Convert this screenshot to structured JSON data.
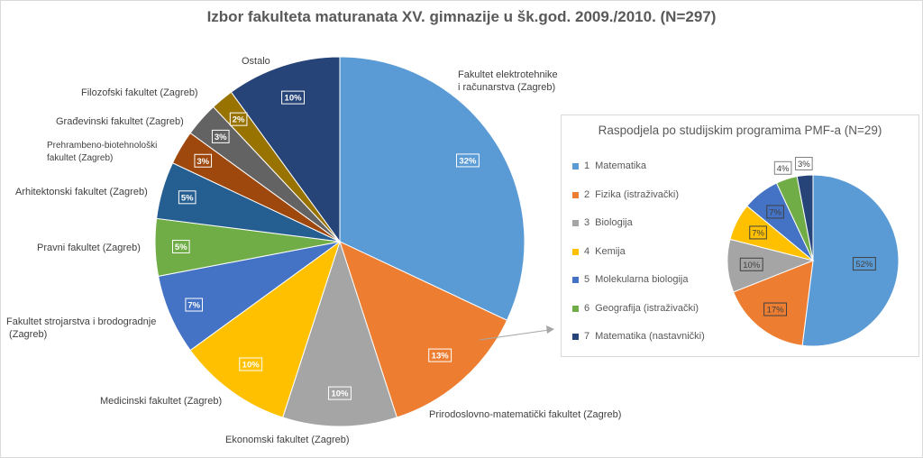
{
  "chart_data": [
    {
      "type": "pie",
      "title": "Izbor fakulteta maturanata XV. gimnazije u šk.god. 2009./2010. (N=297)",
      "slices": [
        {
          "label": "Fakultet elektrotehnike i računarstva (Zagreb)",
          "value": 32,
          "value_label": "32%",
          "color": "#5b9bd5"
        },
        {
          "label": "Prirodoslovno-matematički fakultet (Zagreb)",
          "value": 13,
          "value_label": "13%",
          "color": "#ed7d31"
        },
        {
          "label": "Ekonomski fakultet (Zagreb)",
          "value": 10,
          "value_label": "10%",
          "color": "#a5a5a5"
        },
        {
          "label": "Medicinski fakultet (Zagreb)",
          "value": 10,
          "value_label": "10%",
          "color": "#ffc000"
        },
        {
          "label": "Fakultet strojarstva i brodogradnje (Zagreb)",
          "value": 7,
          "value_label": "7%",
          "color": "#4472c4"
        },
        {
          "label": "Pravni fakultet (Zagreb)",
          "value": 5,
          "value_label": "5%",
          "color": "#70ad47"
        },
        {
          "label": "Arhitektonski fakultet (Zagreb)",
          "value": 5,
          "value_label": "5%",
          "color": "#255e91"
        },
        {
          "label": "Prehrambeno-biotehnološki fakultet (Zagreb)",
          "value": 3,
          "value_label": "3%",
          "color": "#9e480e"
        },
        {
          "label": "Građevinski fakultet (Zagreb)",
          "value": 3,
          "value_label": "3%",
          "color": "#636363"
        },
        {
          "label": "Filozofski fakultet (Zagreb)",
          "value": 2,
          "value_label": "2%",
          "color": "#997300"
        },
        {
          "label": "Ostalo",
          "value": 10,
          "value_label": "10%",
          "color": "#264478"
        }
      ]
    },
    {
      "type": "pie",
      "title": "Raspodjela po studijskim programima PMF-a (N=29)",
      "legend_position": "left",
      "slices": [
        {
          "index": "1",
          "label": "Matematika",
          "value": 52,
          "value_label": "52%",
          "color": "#5b9bd5"
        },
        {
          "index": "2",
          "label": "Fizika (istraživački)",
          "value": 17,
          "value_label": "17%",
          "color": "#ed7d31"
        },
        {
          "index": "3",
          "label": "Biologija",
          "value": 10,
          "value_label": "10%",
          "color": "#a5a5a5"
        },
        {
          "index": "4",
          "label": "Kemija",
          "value": 7,
          "value_label": "7%",
          "color": "#ffc000"
        },
        {
          "index": "5",
          "label": "Molekularna biologija",
          "value": 7,
          "value_label": "7%",
          "color": "#4472c4"
        },
        {
          "index": "6",
          "label": "Geografija (istraživački)",
          "value": 4,
          "value_label": "4%",
          "color": "#70ad47"
        },
        {
          "index": "7",
          "label": "Matematika (nastavnički)",
          "value": 3,
          "value_label": "3%",
          "color": "#264478"
        }
      ]
    }
  ]
}
